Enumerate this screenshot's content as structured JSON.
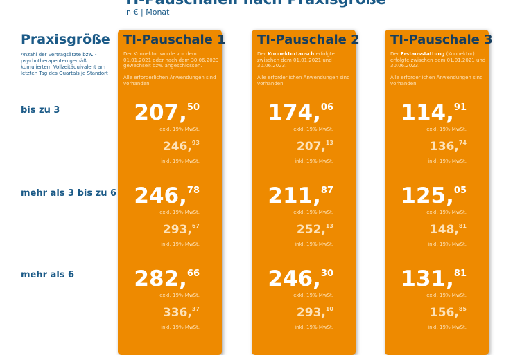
{
  "header": {
    "title": "TI-Pauschalen nach Praxisgröße",
    "subtitle": "in € | Monat"
  },
  "left": {
    "heading": "Praxisgröße",
    "description": "Anzahl der Vertragsärzte bzw. -psychotherapeuten gemäß kumuliertem Vollzeitäquivalent am letzten Tag des Quartals je Standort",
    "rows": [
      "bis zu 3",
      "mehr als 3 bis zu 6",
      "mehr als 6"
    ]
  },
  "labels": {
    "exkl": "exkl. 19% MwSt.",
    "inkl": "inkl. 19% MwSt."
  },
  "colors": {
    "card": "#ee8a00",
    "title": "#1b5a87"
  },
  "cards": [
    {
      "title": "TI-Pauschale 1",
      "desc_pre": "Der Konnektor wurde vor dem 01.01.2021 oder nach dem 30.06.2023 gewechselt bzw. angeschlossen.",
      "desc_bold": "",
      "desc_post": "",
      "desc2": "Alle erforderlichen Anwendungen sind vorhanden.",
      "prices": [
        {
          "exkl_int": "207,",
          "exkl_dec": "50",
          "inkl_int": "246,",
          "inkl_dec": "93"
        },
        {
          "exkl_int": "246,",
          "exkl_dec": "78",
          "inkl_int": "293,",
          "inkl_dec": "67"
        },
        {
          "exkl_int": "282,",
          "exkl_dec": "66",
          "inkl_int": "336,",
          "inkl_dec": "37"
        }
      ]
    },
    {
      "title": "TI-Pauschale 2",
      "desc_pre": "Der ",
      "desc_bold": "Konnektortausch",
      "desc_post": " erfolgte zwischen dem 01.01.2021 und 30.06.2023.",
      "desc2": "Alle erforderlichen Anwendungen sind vorhanden.",
      "prices": [
        {
          "exkl_int": "174,",
          "exkl_dec": "06",
          "inkl_int": "207,",
          "inkl_dec": "13"
        },
        {
          "exkl_int": "211,",
          "exkl_dec": "87",
          "inkl_int": "252,",
          "inkl_dec": "13"
        },
        {
          "exkl_int": "246,",
          "exkl_dec": "30",
          "inkl_int": "293,",
          "inkl_dec": "10"
        }
      ]
    },
    {
      "title": "TI-Pauschale 3",
      "desc_pre": "Der ",
      "desc_bold": "Erstausstattung",
      "desc_post": " (Konnektor) erfolgte zwischen dem 01.01.2021 und 30.06.2023.",
      "desc2": "Alle erforderlichen Anwendungen sind vorhanden.",
      "prices": [
        {
          "exkl_int": "114,",
          "exkl_dec": "91",
          "inkl_int": "136,",
          "inkl_dec": "74"
        },
        {
          "exkl_int": "125,",
          "exkl_dec": "05",
          "inkl_int": "148,",
          "inkl_dec": "81"
        },
        {
          "exkl_int": "131,",
          "exkl_dec": "81",
          "inkl_int": "156,",
          "inkl_dec": "85"
        }
      ]
    }
  ]
}
